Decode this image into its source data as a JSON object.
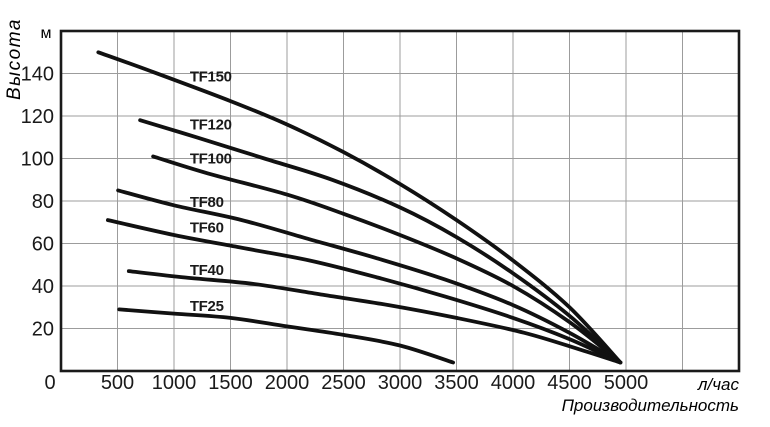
{
  "chart_data": {
    "type": "line",
    "title": "",
    "axis_titles": {
      "y_unit": "м",
      "y_title": "Высота",
      "x_unit": "л/час",
      "x_title": "Производительность"
    },
    "x_axis": {
      "min": 0,
      "max": 6000,
      "grid_step": 500,
      "labeled_to": 5000
    },
    "y_axis": {
      "min": 0,
      "max": 160,
      "grid_step": 20,
      "labeled_to": 140
    },
    "x_ticks": [
      {
        "value": 0,
        "label": "0"
      },
      {
        "value": 500,
        "label": "500"
      },
      {
        "value": 1000,
        "label": "1000"
      },
      {
        "value": 1500,
        "label": "1500"
      },
      {
        "value": 2000,
        "label": "2000"
      },
      {
        "value": 2500,
        "label": "2500"
      },
      {
        "value": 3000,
        "label": "3000"
      },
      {
        "value": 3500,
        "label": "3500"
      },
      {
        "value": 4000,
        "label": "4000"
      },
      {
        "value": 4500,
        "label": "4500"
      },
      {
        "value": 5000,
        "label": "5000"
      }
    ],
    "y_ticks": [
      {
        "value": 20,
        "label": "20"
      },
      {
        "value": 40,
        "label": "40"
      },
      {
        "value": 60,
        "label": "60"
      },
      {
        "value": 80,
        "label": "80"
      },
      {
        "value": 100,
        "label": "100"
      },
      {
        "value": 120,
        "label": "120"
      },
      {
        "value": 140,
        "label": "140"
      }
    ],
    "grid": true,
    "legend_position": "inline-labels",
    "series": [
      {
        "name": "TF150",
        "label_anchor": [
          1140,
          138.5
        ],
        "points": [
          [
            330,
            150
          ],
          [
            800,
            141
          ],
          [
            1500,
            127
          ],
          [
            2000,
            116
          ],
          [
            2500,
            103
          ],
          [
            3000,
            88
          ],
          [
            3500,
            71
          ],
          [
            4000,
            52
          ],
          [
            4500,
            30
          ],
          [
            4950,
            4
          ]
        ]
      },
      {
        "name": "TF120",
        "label_anchor": [
          1140,
          116
        ],
        "points": [
          [
            700,
            118
          ],
          [
            1200,
            110
          ],
          [
            1800,
            100
          ],
          [
            2400,
            90
          ],
          [
            3000,
            77
          ],
          [
            3500,
            63
          ],
          [
            4000,
            46
          ],
          [
            4500,
            26
          ],
          [
            4950,
            4
          ]
        ]
      },
      {
        "name": "TF100",
        "label_anchor": [
          1140,
          100
        ],
        "points": [
          [
            815,
            101
          ],
          [
            1300,
            93
          ],
          [
            2000,
            83
          ],
          [
            2500,
            74
          ],
          [
            3000,
            64
          ],
          [
            3500,
            53
          ],
          [
            4000,
            40
          ],
          [
            4500,
            23
          ],
          [
            4950,
            4
          ]
        ]
      },
      {
        "name": "TF80",
        "label_anchor": [
          1140,
          79.5
        ],
        "points": [
          [
            505,
            85
          ],
          [
            1000,
            78
          ],
          [
            1600,
            71
          ],
          [
            2200,
            62
          ],
          [
            2800,
            53
          ],
          [
            3400,
            43
          ],
          [
            4000,
            31
          ],
          [
            4500,
            18
          ],
          [
            4950,
            4
          ]
        ]
      },
      {
        "name": "TF60",
        "label_anchor": [
          1140,
          67.5
        ],
        "points": [
          [
            415,
            71
          ],
          [
            1000,
            64
          ],
          [
            1600,
            58
          ],
          [
            2200,
            52
          ],
          [
            2800,
            44
          ],
          [
            3400,
            35
          ],
          [
            4000,
            25
          ],
          [
            4500,
            15
          ],
          [
            4950,
            4
          ]
        ]
      },
      {
        "name": "TF40",
        "label_anchor": [
          1140,
          47.5
        ],
        "points": [
          [
            600,
            47
          ],
          [
            1100,
            44
          ],
          [
            1700,
            41
          ],
          [
            2300,
            36
          ],
          [
            2900,
            31
          ],
          [
            3500,
            25
          ],
          [
            4100,
            18
          ],
          [
            4600,
            10
          ],
          [
            4950,
            4
          ]
        ]
      },
      {
        "name": "TF25",
        "label_anchor": [
          1140,
          30.5
        ],
        "points": [
          [
            515,
            29
          ],
          [
            1000,
            27
          ],
          [
            1500,
            25
          ],
          [
            2000,
            21
          ],
          [
            2500,
            17
          ],
          [
            3000,
            12
          ],
          [
            3470,
            4
          ]
        ]
      }
    ],
    "colors": {
      "curve": "#111111",
      "grid": "#9c9c9c",
      "frame": "#1a1a1a",
      "text": "#1a1a1a"
    }
  }
}
